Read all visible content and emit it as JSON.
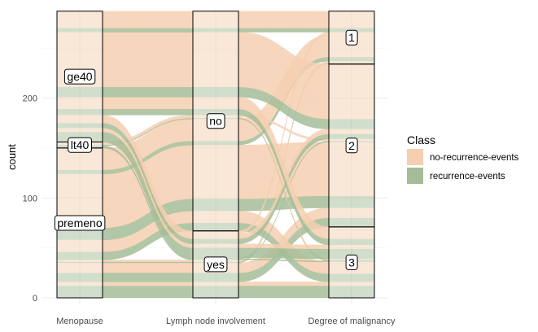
{
  "chart_data": {
    "type": "alluvial",
    "ylabel": "count",
    "yticks": [
      0,
      100,
      200
    ],
    "ylim": [
      0,
      286
    ],
    "grid": true,
    "legend_placement": "right",
    "axes": [
      {
        "name": "Menopause",
        "strata": [
          "premeno",
          "lt40",
          "ge40"
        ]
      },
      {
        "name": "Lymph node involvement",
        "strata": [
          "yes",
          "no"
        ]
      },
      {
        "name": "Degree of malignancy",
        "strata": [
          "3",
          "2",
          "1"
        ]
      }
    ],
    "legend": {
      "title": "Class",
      "entries": [
        {
          "label": "no-recurrence-events",
          "color": "#f4cfb0"
        },
        {
          "label": "recurrence-events",
          "color": "#a4bd98"
        }
      ]
    },
    "flows": [
      {
        "m": "premeno",
        "l": "yes",
        "d": "3",
        "class": "recurrence-events",
        "n": 12
      },
      {
        "m": "premeno",
        "l": "yes",
        "d": "3",
        "class": "no-recurrence-events",
        "n": 4
      },
      {
        "m": "premeno",
        "l": "yes",
        "d": "2",
        "class": "recurrence-events",
        "n": 9
      },
      {
        "m": "premeno",
        "l": "yes",
        "d": "2",
        "class": "no-recurrence-events",
        "n": 10
      },
      {
        "m": "premeno",
        "l": "yes",
        "d": "1",
        "class": "recurrence-events",
        "n": 1
      },
      {
        "m": "premeno",
        "l": "yes",
        "d": "1",
        "class": "no-recurrence-events",
        "n": 2
      },
      {
        "m": "premeno",
        "l": "no",
        "d": "3",
        "class": "recurrence-events",
        "n": 8
      },
      {
        "m": "premeno",
        "l": "no",
        "d": "3",
        "class": "no-recurrence-events",
        "n": 12
      },
      {
        "m": "premeno",
        "l": "no",
        "d": "2",
        "class": "recurrence-events",
        "n": 12
      },
      {
        "m": "premeno",
        "l": "no",
        "d": "2",
        "class": "no-recurrence-events",
        "n": 54
      },
      {
        "m": "premeno",
        "l": "no",
        "d": "1",
        "class": "recurrence-events",
        "n": 4
      },
      {
        "m": "premeno",
        "l": "no",
        "d": "1",
        "class": "no-recurrence-events",
        "n": 22
      },
      {
        "m": "lt40",
        "l": "yes",
        "d": "3",
        "class": "recurrence-events",
        "n": 1
      },
      {
        "m": "lt40",
        "l": "yes",
        "d": "2",
        "class": "recurrence-events",
        "n": 1
      },
      {
        "m": "lt40",
        "l": "no",
        "d": "3",
        "class": "recurrence-events",
        "n": 1
      },
      {
        "m": "lt40",
        "l": "no",
        "d": "3",
        "class": "no-recurrence-events",
        "n": 1
      },
      {
        "m": "lt40",
        "l": "no",
        "d": "2",
        "class": "no-recurrence-events",
        "n": 2
      },
      {
        "m": "ge40",
        "l": "yes",
        "d": "3",
        "class": "recurrence-events",
        "n": 10
      },
      {
        "m": "ge40",
        "l": "yes",
        "d": "3",
        "class": "no-recurrence-events",
        "n": 4
      },
      {
        "m": "ge40",
        "l": "yes",
        "d": "2",
        "class": "recurrence-events",
        "n": 5
      },
      {
        "m": "ge40",
        "l": "yes",
        "d": "2",
        "class": "no-recurrence-events",
        "n": 5
      },
      {
        "m": "ge40",
        "l": "yes",
        "d": "1",
        "class": "no-recurrence-events",
        "n": 3
      },
      {
        "m": "ge40",
        "l": "no",
        "d": "3",
        "class": "recurrence-events",
        "n": 6
      },
      {
        "m": "ge40",
        "l": "no",
        "d": "3",
        "class": "no-recurrence-events",
        "n": 12
      },
      {
        "m": "ge40",
        "l": "no",
        "d": "2",
        "class": "recurrence-events",
        "n": 10
      },
      {
        "m": "ge40",
        "l": "no",
        "d": "2",
        "class": "no-recurrence-events",
        "n": 55
      },
      {
        "m": "ge40",
        "l": "no",
        "d": "1",
        "class": "recurrence-events",
        "n": 4
      },
      {
        "m": "ge40",
        "l": "no",
        "d": "1",
        "class": "no-recurrence-events",
        "n": 17
      }
    ]
  }
}
